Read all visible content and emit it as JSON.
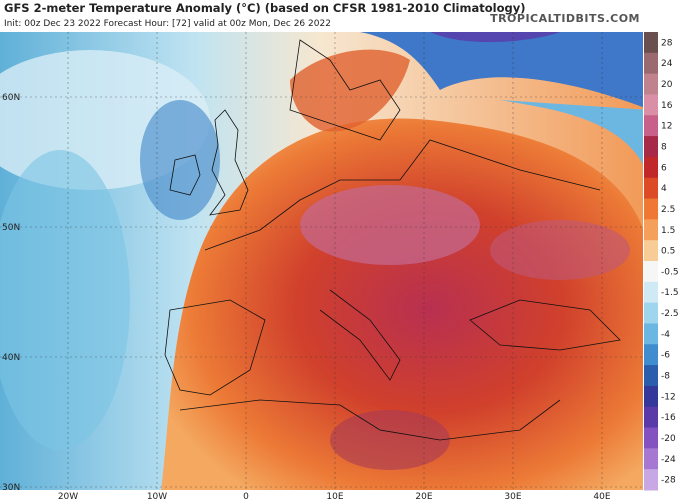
{
  "header": {
    "title": "GFS 2-meter Temperature Anomaly (°C) (based on CFSR 1981-2010 Climatology)",
    "subtitle": "Init: 00z Dec 23 2022   Forecast Hour: [72]   valid at 00z Mon, Dec 26 2022",
    "brand": "TROPICALTIDBITS.COM"
  },
  "map": {
    "lat_labels": [
      "60N",
      "50N",
      "40N",
      "30N"
    ],
    "lon_labels": [
      "20W",
      "10W",
      "0",
      "10E",
      "20E",
      "30E",
      "40E"
    ]
  },
  "colorbar": [
    {
      "label": "28",
      "color": "#6b4f4f"
    },
    {
      "label": "24",
      "color": "#9a6a6e"
    },
    {
      "label": "20",
      "color": "#c0828c"
    },
    {
      "label": "16",
      "color": "#d98fa6"
    },
    {
      "label": "12",
      "color": "#c8608a"
    },
    {
      "label": "8",
      "color": "#a82848"
    },
    {
      "label": "6",
      "color": "#c0282a"
    },
    {
      "label": "4",
      "color": "#dc4a26"
    },
    {
      "label": "2.5",
      "color": "#ee7834"
    },
    {
      "label": "1.5",
      "color": "#f5a05a"
    },
    {
      "label": "0.5",
      "color": "#f8cc96"
    },
    {
      "label": "-0.5",
      "color": "#f6f6f6"
    },
    {
      "label": "-1.5",
      "color": "#cfeaf5"
    },
    {
      "label": "-2.5",
      "color": "#9fd6ee"
    },
    {
      "label": "-4",
      "color": "#6cb6e2"
    },
    {
      "label": "-6",
      "color": "#3f8ccf"
    },
    {
      "label": "-8",
      "color": "#2a5eac"
    },
    {
      "label": "-12",
      "color": "#34389a"
    },
    {
      "label": "-16",
      "color": "#5a3aa8"
    },
    {
      "label": "-20",
      "color": "#8452c0"
    },
    {
      "label": "-24",
      "color": "#a678d2"
    },
    {
      "label": "-28",
      "color": "#c8a8e4"
    }
  ]
}
